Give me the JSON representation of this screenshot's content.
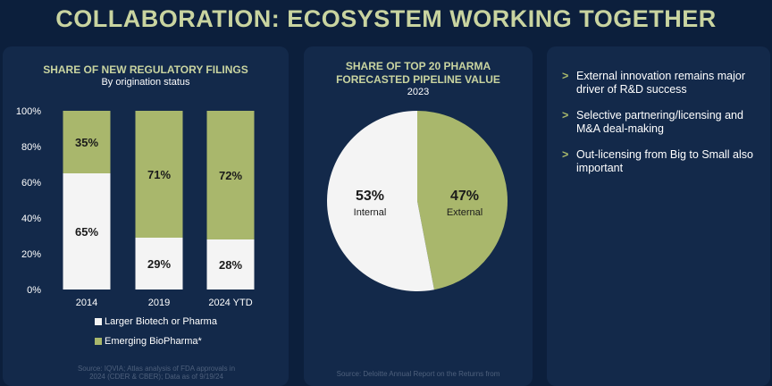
{
  "title": "COLLABORATION: ECOSYSTEM WORKING TOGETHER",
  "colors": {
    "green": "#a9b76c",
    "white": "#f4f4f4",
    "bg": "#0c1f3c"
  },
  "chart_data": [
    {
      "type": "bar",
      "stacked": true,
      "title": "SHARE OF NEW REGULATORY FILINGS",
      "subtitle": "By origination status",
      "categories": [
        "2014",
        "2019",
        "2024 YTD"
      ],
      "yticks": [
        "0%",
        "20%",
        "40%",
        "60%",
        "80%",
        "100%"
      ],
      "ylim": [
        0,
        100
      ],
      "series": [
        {
          "name": "Larger Biotech or Pharma",
          "values": [
            65,
            29,
            28
          ],
          "labels": [
            "65%",
            "29%",
            "28%"
          ]
        },
        {
          "name": "Emerging BioPharma*",
          "values": [
            35,
            71,
            72
          ],
          "labels": [
            "35%",
            "71%",
            "72%"
          ]
        }
      ],
      "source": [
        "Source: IQVIA; Atlas analysis of FDA approvals in",
        "2024 (CDER & CBER); Data as of 9/19/24"
      ]
    },
    {
      "type": "pie",
      "title": [
        "SHARE OF TOP 20 PHARMA",
        "FORECASTED PIPELINE VALUE"
      ],
      "subtitle": "2023",
      "slices": [
        {
          "name": "External",
          "value": 47,
          "label": "47%"
        },
        {
          "name": "Internal",
          "value": 53,
          "label": "53%"
        }
      ],
      "source": "Source: Deloitte Annual Report on the Returns from"
    }
  ],
  "bullets": [
    {
      "marker": ">",
      "text": "External innovation remains major driver of R&D success"
    },
    {
      "marker": ">",
      "text": "Selective partnering/licensing and M&A deal-making"
    },
    {
      "marker": ">",
      "text": "Out-licensing from Big to Small also important"
    }
  ]
}
